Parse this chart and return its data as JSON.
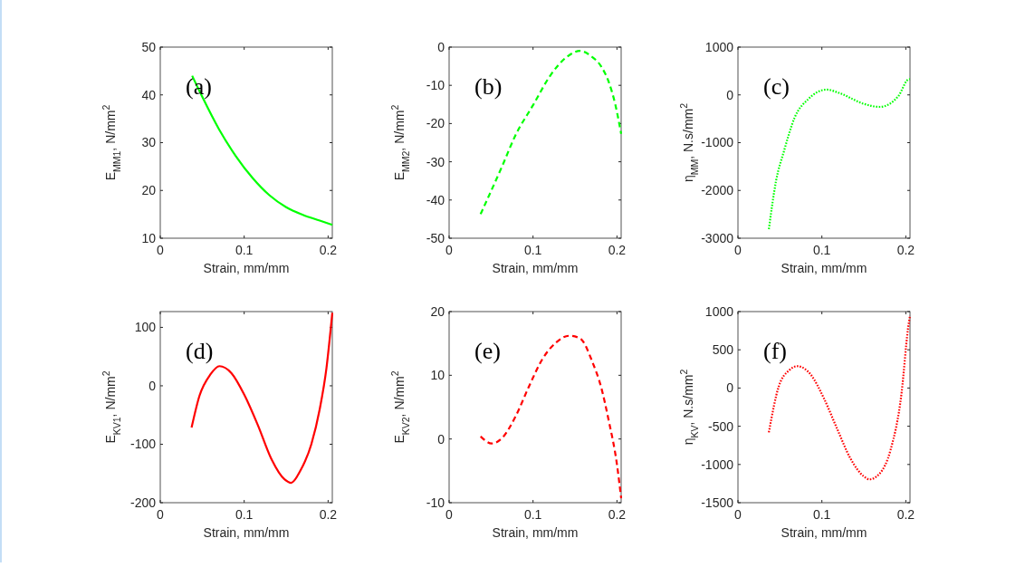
{
  "chart_data": [
    {
      "type": "line",
      "annotations": [
        "(a)"
      ],
      "xlabel": "Strain, mm/mm",
      "ylabel": "E$_{MM1}$, N/mm$^{2}$",
      "xlim": [
        0,
        0.205
      ],
      "xticks": [
        0,
        0.1,
        0.2
      ],
      "ylim": [
        10,
        50
      ],
      "yticks": [
        10,
        20,
        30,
        40,
        50
      ],
      "line_style": "solid",
      "series": [
        {
          "color": "#00ff00",
          "x": [
            0.038,
            0.05,
            0.07,
            0.09,
            0.11,
            0.13,
            0.15,
            0.17,
            0.19,
            0.205
          ],
          "values": [
            44,
            39.6,
            32.8,
            27.2,
            22.6,
            19.0,
            16.5,
            14.9,
            13.7,
            12.8
          ]
        }
      ]
    },
    {
      "type": "line",
      "annotations": [
        "(b)"
      ],
      "xlabel": "Strain, mm/mm",
      "ylabel": "E$_{MM2}$, N/mm$^{2}$",
      "xlim": [
        0,
        0.205
      ],
      "xticks": [
        0,
        0.1,
        0.2
      ],
      "ylim": [
        -50,
        0
      ],
      "yticks": [
        -50,
        -40,
        -30,
        -20,
        -10,
        0
      ],
      "line_style": "dashed",
      "series": [
        {
          "color": "#00ff00",
          "x": [
            0.0375,
            0.0635,
            0.079,
            0.1,
            0.121,
            0.14,
            0.156,
            0.17,
            0.181,
            0.19,
            0.198,
            0.205
          ],
          "values": [
            -43.7,
            -31,
            -23.1,
            -15.2,
            -7.3,
            -2.6,
            -1,
            -2.5,
            -5,
            -9,
            -15,
            -22.7
          ]
        }
      ]
    },
    {
      "type": "line",
      "annotations": [
        "(c)"
      ],
      "xlabel": "Strain, mm/mm",
      "ylabel": "η$_{MM}$, N.s/mm$^{2}$",
      "xlim": [
        0,
        0.205
      ],
      "xticks": [
        0,
        0.1,
        0.2
      ],
      "ylim": [
        -3000,
        1000
      ],
      "yticks": [
        -3000,
        -2000,
        -1000,
        0,
        1000
      ],
      "line_style": "dotted",
      "series": [
        {
          "color": "#00ff00",
          "x": [
            0.0368,
            0.0454,
            0.055,
            0.0676,
            0.0835,
            0.1057,
            0.1216,
            0.15,
            0.169,
            0.191,
            0.2025,
            0.205
          ],
          "values": [
            -2810,
            -1800,
            -1167,
            -472,
            -93,
            110,
            33,
            -188,
            -251,
            -30,
            318,
            330
          ]
        }
      ]
    },
    {
      "type": "line",
      "annotations": [
        "(d)"
      ],
      "xlabel": "Strain, mm/mm",
      "ylabel": "E$_{KV1}$, N/mm$^{2}$",
      "xlim": [
        0,
        0.205
      ],
      "xticks": [
        0,
        0.1,
        0.2
      ],
      "ylim": [
        -200,
        127
      ],
      "yticks": [
        -200,
        -100,
        0,
        100
      ],
      "line_style": "solid",
      "series": [
        {
          "color": "#ff0000",
          "x": [
            0.0373,
            0.0468,
            0.0595,
            0.0706,
            0.0848,
            0.1006,
            0.1165,
            0.132,
            0.148,
            0.156,
            0.167,
            0.18,
            0.19,
            0.198,
            0.205
          ],
          "values": [
            -71.5,
            -16.7,
            19,
            33.6,
            21.7,
            -16.7,
            -68,
            -124,
            -160,
            -166,
            -145,
            -100,
            -40,
            30,
            125
          ]
        }
      ]
    },
    {
      "type": "line",
      "annotations": [
        "(e)"
      ],
      "xlabel": "Strain, mm/mm",
      "ylabel": "E$_{KV2}$, N/mm$^{2}$",
      "xlim": [
        0,
        0.205
      ],
      "xticks": [
        0,
        0.1,
        0.2
      ],
      "ylim": [
        -10,
        20
      ],
      "yticks": [
        -10,
        0,
        10,
        20
      ],
      "line_style": "dashed",
      "series": [
        {
          "color": "#ff0000",
          "x": [
            0.0375,
            0.0508,
            0.0635,
            0.079,
            0.095,
            0.111,
            0.127,
            0.143,
            0.156,
            0.171,
            0.181,
            0.19,
            0.2,
            0.205
          ],
          "values": [
            0.4,
            -0.7,
            0.2,
            3.5,
            8.2,
            12.5,
            15.1,
            16.2,
            15.8,
            12.0,
            8.2,
            3,
            -4,
            -9.3
          ]
        }
      ]
    },
    {
      "type": "line",
      "annotations": [
        "(f)"
      ],
      "xlabel": "Strain, mm/mm",
      "ylabel": "η$_{KV}$, N.s/mm$^{2}$",
      "xlim": [
        0,
        0.205
      ],
      "xticks": [
        0,
        0.1,
        0.2
      ],
      "ylim": [
        -1500,
        1000
      ],
      "yticks": [
        -1500,
        -1000,
        -500,
        0,
        500,
        1000
      ],
      "line_style": "dotted",
      "series": [
        {
          "color": "#ff0000",
          "x": [
            0.0368,
            0.0486,
            0.0613,
            0.0708,
            0.0867,
            0.1025,
            0.118,
            0.134,
            0.15,
            0.1565,
            0.169,
            0.182,
            0.195,
            0.2025,
            0.205
          ],
          "values": [
            -580,
            20,
            235,
            286,
            176,
            -137,
            -529,
            -921,
            -1156,
            -1195,
            -1117,
            -803,
            -59,
            764,
            950
          ]
        }
      ]
    }
  ]
}
